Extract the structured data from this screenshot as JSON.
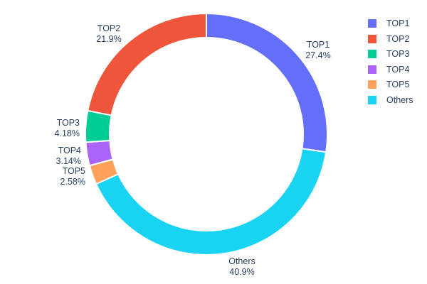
{
  "chart_data": {
    "type": "pie",
    "subtype": "donut",
    "hole": 0.8,
    "title": "",
    "background": "#ffffff",
    "text_color": "#2a3f5f",
    "slice_border_color": "#ffffff",
    "legend_position": "right",
    "labels_position": "outside",
    "slices": [
      {
        "label": "TOP1",
        "value": 27.4,
        "pct_label": "27.4%",
        "color": "#636EFA"
      },
      {
        "label": "TOP2",
        "value": 21.9,
        "pct_label": "21.9%",
        "color": "#EF553B"
      },
      {
        "label": "TOP3",
        "value": 4.18,
        "pct_label": "4.18%",
        "color": "#00CC96"
      },
      {
        "label": "TOP4",
        "value": 3.14,
        "pct_label": "3.14%",
        "color": "#AB63FA"
      },
      {
        "label": "TOP5",
        "value": 2.58,
        "pct_label": "2.58%",
        "color": "#FFA15A"
      },
      {
        "label": "Others",
        "value": 40.9,
        "pct_label": "40.9%",
        "color": "#19D3F3"
      }
    ],
    "clockwise_draw_order_from_top": [
      0,
      5,
      4,
      3,
      2,
      1
    ]
  }
}
